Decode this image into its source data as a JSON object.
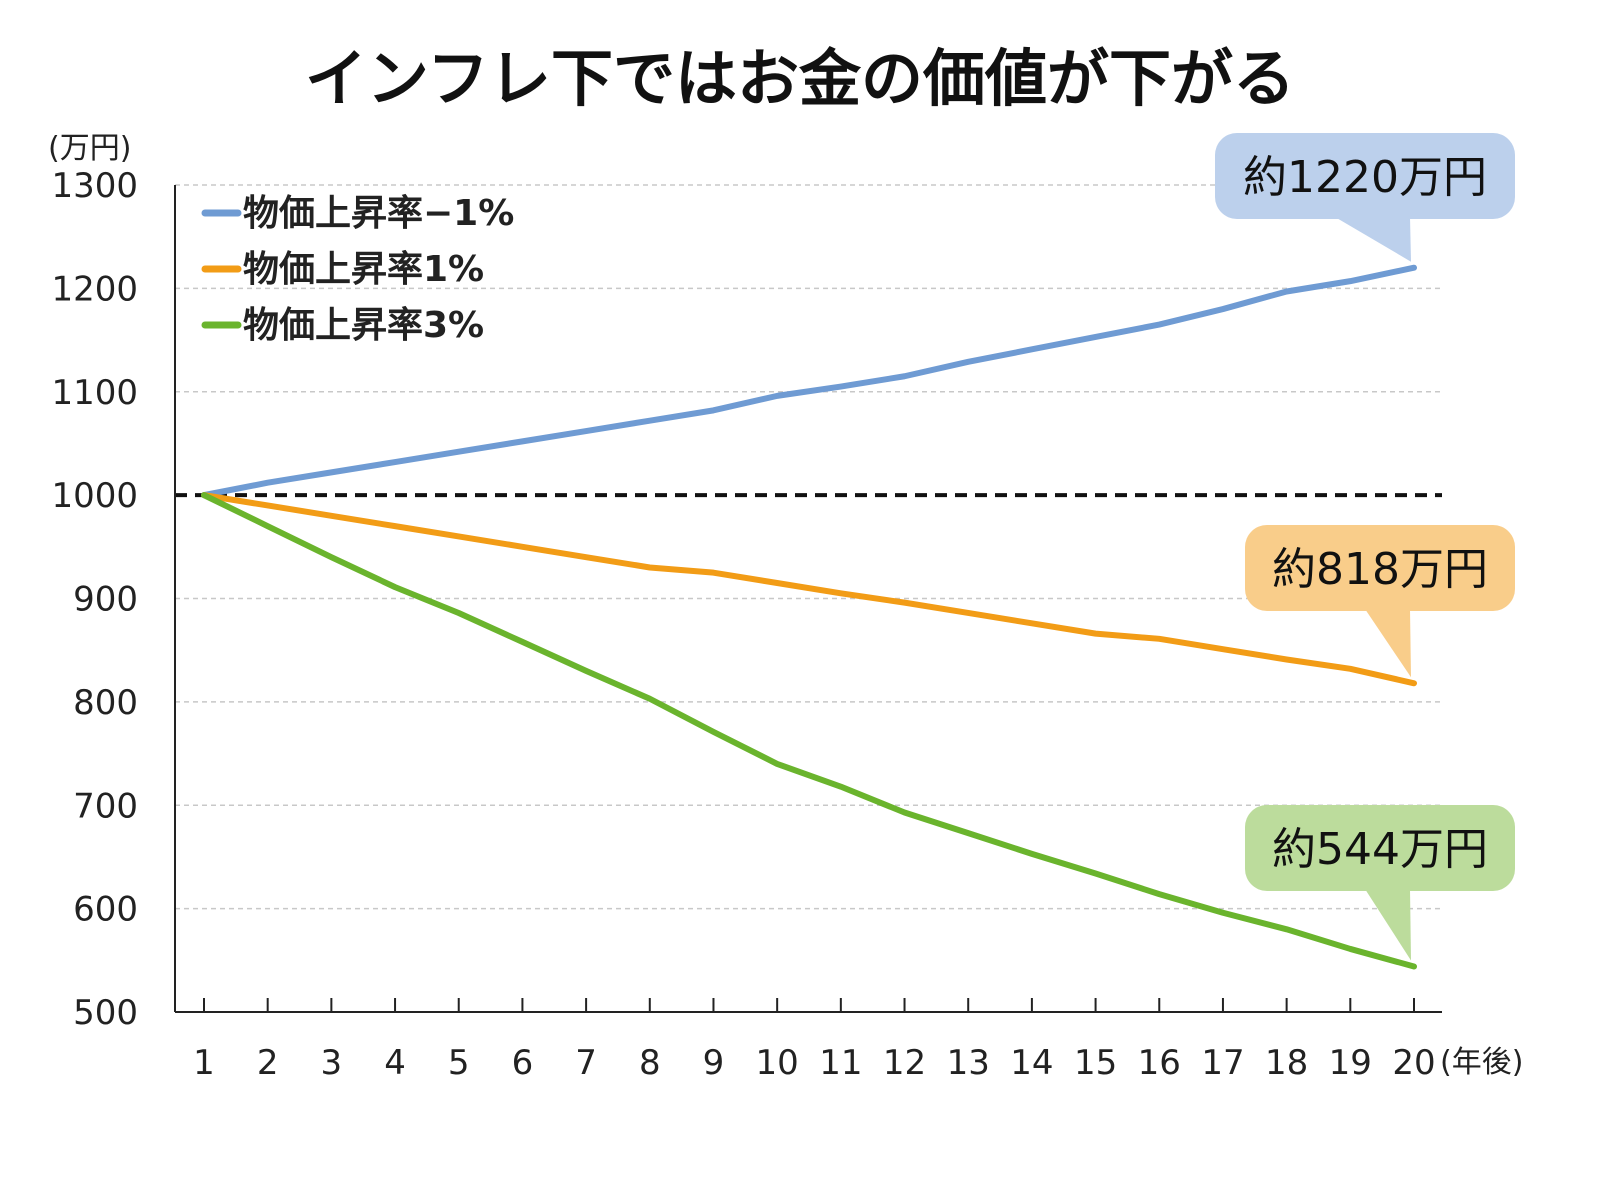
{
  "chart_data": {
    "type": "line",
    "title": "インフレ下ではお金の価値が下がる",
    "ylabel": "(万円)",
    "xlabel": "(年後)",
    "ylim": [
      500,
      1300
    ],
    "yticks": [
      "500",
      "600",
      "700",
      "800",
      "900",
      "1000",
      "1100",
      "1200",
      "1300"
    ],
    "x": [
      1,
      2,
      3,
      4,
      5,
      6,
      7,
      8,
      9,
      10,
      11,
      12,
      13,
      14,
      15,
      16,
      17,
      18,
      19,
      20
    ],
    "grid": "horizontal dashed",
    "legend_position": "top-left",
    "reference_line": {
      "value": 1000,
      "style": "dashed",
      "color": "#111111"
    },
    "series": [
      {
        "name": "物価上昇率−1%",
        "color": "#6f9bd3",
        "values": [
          1000,
          1012,
          1022,
          1032,
          1042,
          1052,
          1062,
          1072,
          1082,
          1096,
          1105,
          1115,
          1129,
          1141,
          1153,
          1165,
          1180,
          1197,
          1207,
          1220
        ],
        "callout": "約1220万円",
        "callout_color": "#bcd0ec"
      },
      {
        "name": "物価上昇率1%",
        "color": "#f29c16",
        "values": [
          1000,
          990,
          980,
          970,
          960,
          950,
          940,
          930,
          925,
          915,
          905,
          896,
          886,
          876,
          866,
          861,
          851,
          841,
          832,
          818
        ],
        "callout": "約818万円",
        "callout_color": "#f9cd8a"
      },
      {
        "name": "物価上昇率3%",
        "color": "#6ab42d",
        "values": [
          1000,
          970,
          940,
          911,
          886,
          858,
          830,
          803,
          771,
          740,
          718,
          693,
          673,
          653,
          634,
          614,
          596,
          580,
          561,
          544
        ],
        "callout": "約544万円",
        "callout_color": "#bcdc9c"
      }
    ]
  }
}
